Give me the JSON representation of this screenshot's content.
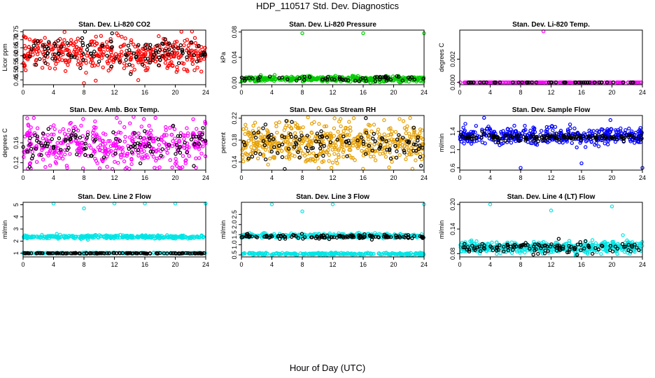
{
  "main_title": "HDP_110517  Std. Dev. Diagnostics",
  "x_axis_label": "Hour of Day (UTC)",
  "chart_data": [
    {
      "type": "scatter",
      "title": "Stan. Dev. Li-820 CO2",
      "ylabel": "Licor ppm",
      "xlim": [
        0,
        24
      ],
      "ylim": [
        0.42,
        0.76
      ],
      "xticks": [
        "0",
        "4",
        "8",
        "12",
        "16",
        "20",
        "24"
      ],
      "yticks": [
        "0.45",
        "0.50",
        "0.55",
        "0.60",
        "0.65",
        "0.70",
        "0.75"
      ],
      "series": [
        {
          "name": "all",
          "color": "#ff0000",
          "baseline": 0.615,
          "spread": 0.05,
          "n": 420,
          "spikes": [
            [
              8.0,
              0.43
            ],
            [
              12.3,
              0.74
            ],
            [
              20.8,
              0.75
            ]
          ]
        },
        {
          "name": "hourly",
          "color": "#000000",
          "baseline": 0.615,
          "spread": 0.045,
          "n": 110,
          "spikes": [
            [
              11.7,
              0.74
            ]
          ]
        }
      ]
    },
    {
      "type": "scatter",
      "title": "Stan. Dev. Li-820 Pressure",
      "ylabel": "kPa",
      "xlim": [
        0,
        24
      ],
      "ylim": [
        -0.003,
        0.083
      ],
      "xticks": [
        "0",
        "4",
        "8",
        "12",
        "16",
        "20",
        "24"
      ],
      "yticks": [
        "0.00",
        "0.04",
        "0.08"
      ],
      "series": [
        {
          "name": "all",
          "color": "#00cc00",
          "baseline": 0.006,
          "spread": 0.002,
          "n": 450,
          "spikes": [
            [
              8.0,
              0.078
            ],
            [
              16.0,
              0.078
            ],
            [
              24.0,
              0.078
            ]
          ]
        },
        {
          "name": "hourly",
          "color": "#000000",
          "baseline": 0.006,
          "spread": 0.0025,
          "n": 60,
          "spikes": []
        }
      ]
    },
    {
      "type": "scatter",
      "title": "Stan. Dev. Li-820 Temp.",
      "ylabel": "degrees C",
      "xlim": [
        0,
        24
      ],
      "ylim": [
        -0.0002,
        0.0045
      ],
      "xticks": [
        "0",
        "4",
        "8",
        "12",
        "16",
        "20",
        "24"
      ],
      "yticks": [
        "0.000",
        "0.002"
      ],
      "series": [
        {
          "name": "all",
          "color": "#ff00ff",
          "baseline": 0.0,
          "spread": 0.0,
          "n": 200,
          "spikes": [
            [
              11.0,
              0.0044
            ]
          ]
        },
        {
          "name": "hourly",
          "color": "#000000",
          "baseline": 0.0,
          "spread": 0.0,
          "n": 48,
          "spikes": []
        }
      ]
    },
    {
      "type": "scatter",
      "title": "Stan. Dev. Amb. Box Temp.",
      "ylabel": "degrees C",
      "xlim": [
        0,
        24
      ],
      "ylim": [
        0.105,
        0.215
      ],
      "xticks": [
        "0",
        "4",
        "8",
        "12",
        "16",
        "20",
        "24"
      ],
      "yticks": [
        "0.12",
        "0.16"
      ],
      "series": [
        {
          "name": "all",
          "color": "#ff00ff",
          "baseline": 0.155,
          "spread": 0.022,
          "n": 430,
          "spikes": [
            [
              12.3,
              0.21
            ],
            [
              17.4,
              0.21
            ],
            [
              20.5,
              0.11
            ]
          ]
        },
        {
          "name": "hourly",
          "color": "#000000",
          "baseline": 0.155,
          "spread": 0.018,
          "n": 100,
          "spikes": []
        }
      ]
    },
    {
      "type": "scatter",
      "title": "Stan. Dev. Gas Stream RH",
      "ylabel": "percent",
      "xlim": [
        0,
        24
      ],
      "ylim": [
        0.125,
        0.225
      ],
      "xticks": [
        "0",
        "4",
        "8",
        "12",
        "16",
        "20",
        "24"
      ],
      "yticks": [
        "0.14",
        "0.18",
        "0.22"
      ],
      "series": [
        {
          "name": "all",
          "color": "#e69f00",
          "baseline": 0.175,
          "spread": 0.018,
          "n": 520,
          "spikes": [
            [
              6.0,
              0.215
            ],
            [
              19.4,
              0.13
            ]
          ]
        },
        {
          "name": "hourly",
          "color": "#000000",
          "baseline": 0.175,
          "spread": 0.016,
          "n": 110,
          "spikes": [
            [
              5.9,
              0.215
            ],
            [
              23.6,
              0.133
            ]
          ]
        }
      ]
    },
    {
      "type": "scatter",
      "title": "Stan. Dev. Sample Flow",
      "ylabel": "ml/min",
      "xlim": [
        0,
        24
      ],
      "ylim": [
        0.55,
        1.75
      ],
      "xticks": [
        "0",
        "4",
        "8",
        "12",
        "16",
        "20",
        "24"
      ],
      "yticks": [
        "0.6",
        "1.0",
        "1.4"
      ],
      "series": [
        {
          "name": "all",
          "color": "#0000ff",
          "baseline": 1.3,
          "spread": 0.09,
          "n": 420,
          "spikes": [
            [
              8.0,
              0.6
            ],
            [
              16.0,
              0.7
            ],
            [
              24.0,
              0.6
            ],
            [
              3.2,
              1.7
            ],
            [
              19.8,
              1.65
            ]
          ]
        },
        {
          "name": "hourly",
          "color": "#000000",
          "baseline": 1.27,
          "spread": 0.04,
          "n": 140,
          "spikes": []
        }
      ]
    },
    {
      "type": "scatter",
      "title": "Stan. Dev. Line 2 Flow",
      "ylabel": "ml/min",
      "xlim": [
        0,
        24
      ],
      "ylim": [
        0.7,
        5.2
      ],
      "xticks": [
        "0",
        "4",
        "8",
        "12",
        "16",
        "20",
        "24"
      ],
      "yticks": [
        "1",
        "2",
        "3",
        "4",
        "5"
      ],
      "series": [
        {
          "name": "upper",
          "color": "#00e5e5",
          "baseline": 2.35,
          "spread": 0.07,
          "n": 320,
          "spikes": [
            [
              4.0,
              5.1
            ],
            [
              8.0,
              4.7
            ],
            [
              12.0,
              5.1
            ],
            [
              16.0,
              5.1
            ],
            [
              20.0,
              5.1
            ],
            [
              24.0,
              5.1
            ]
          ]
        },
        {
          "name": "lower",
          "color": "#00e5e5",
          "baseline": 1.02,
          "spread": 0.02,
          "n": 180,
          "spikes": []
        },
        {
          "name": "hourly",
          "color": "#000000",
          "baseline": 1.0,
          "spread": 0.015,
          "n": 140,
          "spikes": []
        }
      ]
    },
    {
      "type": "scatter",
      "title": "Stan. Dev. Line 3 Flow",
      "ylabel": "ml/min",
      "xlim": [
        0,
        24
      ],
      "ylim": [
        0.4,
        3.1
      ],
      "xticks": [
        "0",
        "4",
        "8",
        "12",
        "16",
        "20",
        "24"
      ],
      "yticks": [
        "0.5",
        "1.0",
        "1.5",
        "2.0",
        "2.5"
      ],
      "series": [
        {
          "name": "upper",
          "color": "#00e5e5",
          "baseline": 1.45,
          "spread": 0.05,
          "n": 280,
          "spikes": [
            [
              4.0,
              3.0
            ],
            [
              8.0,
              2.65
            ],
            [
              12.0,
              3.0
            ],
            [
              24.0,
              3.0
            ]
          ]
        },
        {
          "name": "lower",
          "color": "#00e5e5",
          "baseline": 0.55,
          "spread": 0.025,
          "n": 260,
          "spikes": []
        },
        {
          "name": "hourly",
          "color": "#000000",
          "baseline": 1.4,
          "spread": 0.05,
          "n": 130,
          "spikes": []
        }
      ]
    },
    {
      "type": "scatter",
      "title": "Stan. Dev. Line 4 (LT) Flow",
      "ylabel": "ml/min",
      "xlim": [
        0,
        24
      ],
      "ylim": [
        0.072,
        0.205
      ],
      "xticks": [
        "0",
        "4",
        "8",
        "12",
        "16",
        "20",
        "24"
      ],
      "yticks": [
        "0.08",
        "0.14",
        "0.20"
      ],
      "series": [
        {
          "name": "all",
          "color": "#00e5e5",
          "baseline": 0.095,
          "spread": 0.007,
          "n": 460,
          "spikes": [
            [
              4.0,
              0.2
            ],
            [
              12.0,
              0.185
            ],
            [
              20.0,
              0.195
            ]
          ]
        },
        {
          "name": "hourly",
          "color": "#000000",
          "baseline": 0.095,
          "spread": 0.007,
          "n": 120,
          "spikes": [
            [
              13.0,
              0.116
            ]
          ]
        }
      ]
    }
  ]
}
